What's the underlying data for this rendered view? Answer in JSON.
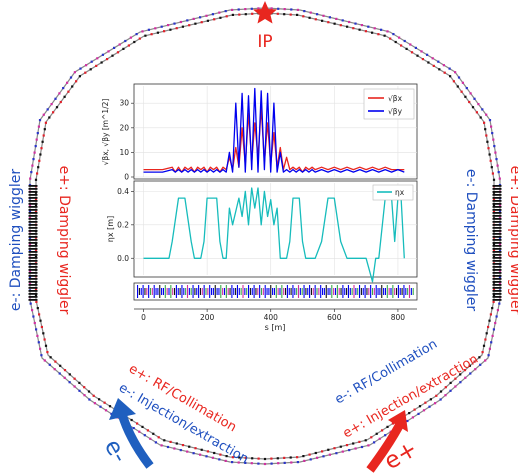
{
  "colors": {
    "red": "#e8261f",
    "blue": "#1f4fbf",
    "cyan": "#17bcbc",
    "dark_blue_line": "#0000ee",
    "ring_blue": "#2a34c8",
    "ring_red": "#e0202a",
    "ring_green": "#3aa84a",
    "ring_magenta": "#d02fa0"
  },
  "labels": {
    "ip": "IP",
    "left_blue": "e-: Damping wiggler",
    "left_red": "e+: Damping wiggler",
    "right_blue": "e-: Damping wiggler",
    "right_red": "e+: Damping wiggler",
    "lower_left_red": "e+: RF/Collimation",
    "lower_left_blue": "e-: Injection/extraction",
    "lower_right_blue": "e-: RF/Collimation",
    "lower_right_red": "e+: Injection/extraction",
    "electron": "e-",
    "positron": "e+"
  },
  "icons": {
    "ip_marker": "red-star-icon",
    "electron_arrow": "curved-arrow-up-icon",
    "positron_arrow": "curved-arrow-up-icon"
  },
  "chart_data": [
    {
      "type": "line",
      "ylabel": "√βx, √βy [m^1/2]",
      "ylim": [
        0,
        37
      ],
      "yticks": [
        0,
        10,
        20,
        30
      ],
      "xlim": [
        -30,
        860
      ],
      "legend_position": "top-right",
      "series": [
        {
          "name": "√βx",
          "color": "red",
          "x": [
            0,
            60,
            90,
            100,
            110,
            120,
            130,
            140,
            150,
            160,
            170,
            180,
            190,
            200,
            210,
            220,
            230,
            240,
            250,
            260,
            270,
            280,
            290,
            300,
            310,
            320,
            330,
            340,
            350,
            360,
            370,
            380,
            390,
            400,
            410,
            420,
            430,
            440,
            450,
            460,
            470,
            480,
            490,
            500,
            510,
            520,
            530,
            540,
            560,
            580,
            600,
            620,
            640,
            660,
            680,
            700,
            720,
            740,
            760,
            780,
            800,
            820
          ],
          "values": [
            3,
            3,
            4,
            2,
            4,
            2,
            4,
            3,
            4,
            2,
            4,
            3,
            4,
            2,
            4,
            3,
            4,
            2,
            4,
            3,
            8,
            3,
            12,
            4,
            20,
            5,
            26,
            6,
            22,
            8,
            28,
            6,
            22,
            5,
            18,
            4,
            12,
            3,
            8,
            3,
            4,
            3,
            4,
            2,
            4,
            3,
            4,
            3,
            4,
            3,
            4,
            3,
            4,
            3,
            4,
            3,
            4,
            3,
            4,
            3,
            3,
            3
          ]
        },
        {
          "name": "√βy",
          "color": "blue",
          "x": [
            0,
            60,
            90,
            100,
            110,
            120,
            130,
            140,
            150,
            160,
            170,
            180,
            190,
            200,
            210,
            220,
            230,
            240,
            250,
            260,
            270,
            280,
            290,
            300,
            310,
            320,
            330,
            340,
            350,
            360,
            370,
            380,
            390,
            400,
            410,
            420,
            430,
            440,
            450,
            460,
            470,
            480,
            490,
            500,
            510,
            520,
            530,
            540,
            560,
            580,
            600,
            620,
            640,
            660,
            680,
            700,
            720,
            740,
            760,
            780,
            800,
            820
          ],
          "values": [
            2,
            2,
            3,
            2,
            3,
            2,
            3,
            2,
            3,
            2,
            3,
            2,
            3,
            2,
            3,
            2,
            3,
            2,
            3,
            2,
            10,
            2,
            30,
            4,
            34,
            2,
            33,
            3,
            36,
            2,
            35,
            3,
            34,
            2,
            30,
            2,
            10,
            2,
            3,
            2,
            3,
            2,
            3,
            2,
            3,
            2,
            3,
            2,
            3,
            2,
            3,
            2,
            3,
            2,
            3,
            2,
            3,
            2,
            3,
            2,
            3,
            2
          ]
        }
      ]
    },
    {
      "type": "line",
      "xlabel": "s [m]",
      "ylabel": "ηx [m]",
      "ylim": [
        -0.1,
        0.45
      ],
      "yticks": [
        0.0,
        0.2,
        0.4
      ],
      "xlim": [
        -30,
        860
      ],
      "xticks": [
        0,
        200,
        400,
        600,
        800
      ],
      "legend_position": "top-right",
      "series": [
        {
          "name": "ηx",
          "color": "cyan",
          "x": [
            0,
            80,
            90,
            110,
            120,
            130,
            150,
            160,
            170,
            180,
            190,
            200,
            230,
            240,
            250,
            260,
            270,
            280,
            300,
            310,
            320,
            330,
            340,
            350,
            360,
            370,
            380,
            390,
            400,
            410,
            420,
            430,
            440,
            450,
            460,
            470,
            480,
            490,
            500,
            510,
            520,
            530,
            540,
            560,
            580,
            590,
            600,
            620,
            640,
            660,
            680,
            700,
            720,
            730,
            740,
            760,
            780,
            790,
            800,
            810,
            820
          ],
          "values": [
            0.0,
            0.0,
            0.1,
            0.36,
            0.36,
            0.36,
            0.1,
            0.0,
            0.0,
            0.0,
            0.1,
            0.36,
            0.36,
            0.1,
            0.0,
            0.0,
            0.3,
            0.2,
            0.36,
            0.25,
            0.4,
            0.2,
            0.42,
            0.3,
            0.42,
            0.2,
            0.4,
            0.25,
            0.35,
            0.2,
            0.3,
            0.0,
            0.0,
            0.0,
            0.1,
            0.36,
            0.36,
            0.36,
            0.1,
            0.0,
            0.0,
            0.0,
            0.0,
            0.1,
            0.36,
            0.36,
            0.36,
            0.1,
            0.0,
            0.0,
            0.0,
            0.0,
            -0.14,
            0.0,
            0.0,
            0.36,
            0.36,
            0.1,
            0.36,
            0.36,
            0.0
          ]
        }
      ]
    }
  ]
}
